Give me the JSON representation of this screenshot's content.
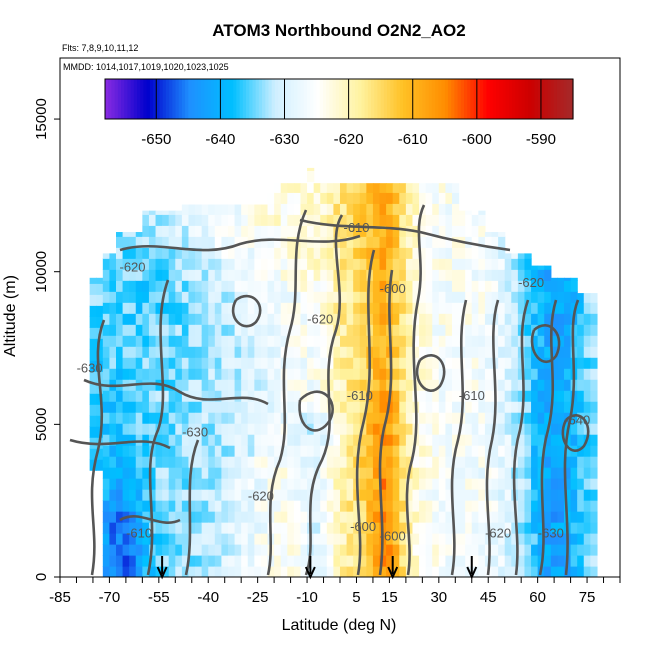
{
  "chart_data": {
    "type": "heatmap",
    "title": "ATOM3 Northbound O2N2_AO2",
    "flights_note": "Flts: 7,8,9,10,11,12",
    "dates_note": "MMDD: 1014,1017,1019,1020,1023,1025",
    "xlabel": "Latitude (deg N)",
    "ylabel": "Altitude (m)",
    "xlim": [
      -85,
      85
    ],
    "ylim": [
      0,
      17000
    ],
    "x_ticks": [
      -85,
      -70,
      -55,
      -40,
      -25,
      -10,
      5,
      15,
      30,
      45,
      60,
      75
    ],
    "y_ticks": [
      0,
      5000,
      10000,
      15000
    ],
    "colorbar": {
      "range": [
        -658,
        -585
      ],
      "ticks": [
        -650,
        -640,
        -630,
        -620,
        -610,
        -600,
        -590
      ],
      "colors": [
        "#8A2BE2",
        "#0000CD",
        "#1E90FF",
        "#00BFFF",
        "#CFEFFF",
        "#FFFFFF",
        "#FFF3A0",
        "#FFC125",
        "#FF8C00",
        "#FF0000",
        "#CC0000",
        "#A52A2A"
      ]
    },
    "contour_labels": [
      {
        "value": "-620",
        "lat": -63,
        "alt": 10000
      },
      {
        "value": "-610",
        "lat": 5,
        "alt": 11300
      },
      {
        "value": "-620",
        "lat": -6,
        "alt": 8300
      },
      {
        "value": "-630",
        "lat": -76,
        "alt": 6700
      },
      {
        "value": "-630",
        "lat": -44,
        "alt": 4600
      },
      {
        "value": "-610",
        "lat": 6,
        "alt": 5800
      },
      {
        "value": "-600",
        "lat": 16,
        "alt": 9300
      },
      {
        "value": "-610",
        "lat": 40,
        "alt": 5800
      },
      {
        "value": "-620",
        "lat": -24,
        "alt": 2500
      },
      {
        "value": "-610",
        "lat": -61,
        "alt": 1300
      },
      {
        "value": "-600",
        "lat": 7,
        "alt": 1500
      },
      {
        "value": "-600",
        "lat": 16,
        "alt": 1200
      },
      {
        "value": "-620",
        "lat": 48,
        "alt": 1300
      },
      {
        "value": "-630",
        "lat": 64,
        "alt": 1300
      },
      {
        "value": "-620",
        "lat": 58,
        "alt": 9500
      },
      {
        "value": "-640",
        "lat": 72,
        "alt": 5000
      }
    ],
    "profile_markers_lat": [
      -54,
      -9,
      16,
      40
    ],
    "grid": false,
    "colorbar_placement": "top inside plot"
  }
}
